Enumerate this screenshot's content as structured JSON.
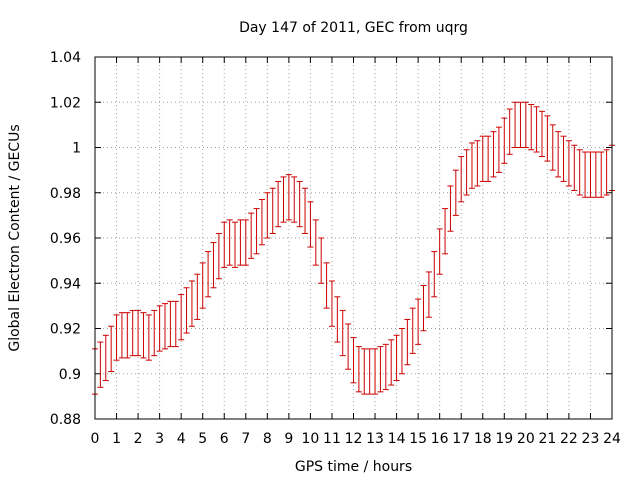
{
  "chart_data": {
    "type": "scatter",
    "title": "Day 147 of 2011, GEC from uqrg",
    "xlabel": "GPS time / hours",
    "ylabel": "Global Electron Content / GECUs",
    "xlim": [
      0,
      24
    ],
    "ylim": [
      0.88,
      1.04
    ],
    "x_ticks": [
      "0",
      "1",
      "2",
      "3",
      "4",
      "5",
      "6",
      "7",
      "8",
      "9",
      "10",
      "11",
      "12",
      "13",
      "14",
      "15",
      "16",
      "17",
      "18",
      "19",
      "20",
      "21",
      "22",
      "23",
      "24"
    ],
    "y_ticks": [
      "0.88",
      "0.9",
      "0.92",
      "0.94",
      "0.96",
      "0.98",
      "1",
      "1.02",
      "1.04"
    ],
    "grid": true,
    "error_bars": true,
    "marker_color": "#cc0000",
    "series": [
      {
        "x": [
          0,
          0.25,
          0.5,
          0.75,
          1,
          1.25,
          1.5,
          1.75,
          2,
          2.25,
          2.5,
          2.75,
          3,
          3.25,
          3.5,
          3.75,
          4,
          4.25,
          4.5,
          4.75,
          5,
          5.25,
          5.5,
          5.75,
          6,
          6.25,
          6.5,
          6.75,
          7,
          7.25,
          7.5,
          7.75,
          8,
          8.25,
          8.5,
          8.75,
          9,
          9.25,
          9.5,
          9.75,
          10,
          10.25,
          10.5,
          10.75,
          11,
          11.25,
          11.5,
          11.75,
          12,
          12.25,
          12.5,
          12.75,
          13,
          13.25,
          13.5,
          13.75,
          14,
          14.25,
          14.5,
          14.75,
          15,
          15.25,
          15.5,
          15.75,
          16,
          16.25,
          16.5,
          16.75,
          17,
          17.25,
          17.5,
          17.75,
          18,
          18.25,
          18.5,
          18.75,
          19,
          19.25,
          19.5,
          19.75,
          20,
          20.25,
          20.5,
          20.75,
          21,
          21.25,
          21.5,
          21.75,
          22,
          22.25,
          22.5,
          22.75,
          23,
          23.25,
          23.5,
          23.75,
          24
        ],
        "y": [
          0.901,
          0.904,
          0.907,
          0.911,
          0.916,
          0.917,
          0.917,
          0.918,
          0.918,
          0.917,
          0.916,
          0.918,
          0.92,
          0.921,
          0.922,
          0.922,
          0.925,
          0.928,
          0.931,
          0.934,
          0.939,
          0.944,
          0.948,
          0.952,
          0.957,
          0.958,
          0.957,
          0.958,
          0.958,
          0.961,
          0.963,
          0.967,
          0.97,
          0.972,
          0.975,
          0.977,
          0.978,
          0.977,
          0.975,
          0.972,
          0.966,
          0.958,
          0.95,
          0.939,
          0.931,
          0.924,
          0.918,
          0.912,
          0.906,
          0.902,
          0.901,
          0.901,
          0.901,
          0.902,
          0.903,
          0.905,
          0.907,
          0.91,
          0.914,
          0.919,
          0.923,
          0.929,
          0.935,
          0.944,
          0.954,
          0.963,
          0.973,
          0.98,
          0.986,
          0.989,
          0.992,
          0.993,
          0.995,
          0.995,
          0.997,
          0.999,
          1.003,
          1.007,
          1.01,
          1.01,
          1.01,
          1.009,
          1.008,
          1.006,
          1.004,
          1.0,
          0.997,
          0.995,
          0.993,
          0.991,
          0.989,
          0.988,
          0.988,
          0.988,
          0.988,
          0.989,
          0.991
        ],
        "error": [
          0.01,
          0.01,
          0.01,
          0.01,
          0.01,
          0.01,
          0.01,
          0.01,
          0.01,
          0.01,
          0.01,
          0.01,
          0.01,
          0.01,
          0.01,
          0.01,
          0.01,
          0.01,
          0.01,
          0.01,
          0.01,
          0.01,
          0.01,
          0.01,
          0.01,
          0.01,
          0.01,
          0.01,
          0.01,
          0.01,
          0.01,
          0.01,
          0.01,
          0.01,
          0.01,
          0.01,
          0.01,
          0.01,
          0.01,
          0.01,
          0.01,
          0.01,
          0.01,
          0.01,
          0.01,
          0.01,
          0.01,
          0.01,
          0.01,
          0.01,
          0.01,
          0.01,
          0.01,
          0.01,
          0.01,
          0.01,
          0.01,
          0.01,
          0.01,
          0.01,
          0.01,
          0.01,
          0.01,
          0.01,
          0.01,
          0.01,
          0.01,
          0.01,
          0.01,
          0.01,
          0.01,
          0.01,
          0.01,
          0.01,
          0.01,
          0.01,
          0.01,
          0.01,
          0.01,
          0.01,
          0.01,
          0.01,
          0.01,
          0.01,
          0.01,
          0.01,
          0.01,
          0.01,
          0.01,
          0.01,
          0.01,
          0.01,
          0.01,
          0.01,
          0.01,
          0.01,
          0.01
        ]
      }
    ]
  }
}
